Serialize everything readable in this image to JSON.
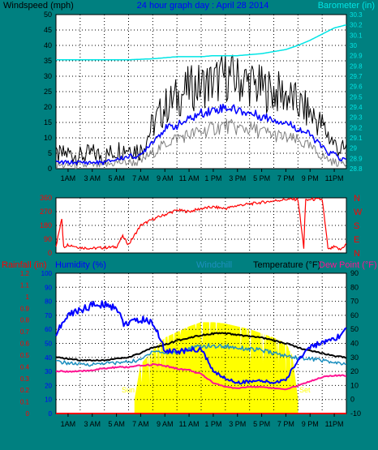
{
  "panels": {
    "wind": {
      "title": "24 hour graph day : April 28 2014",
      "left_label": "Windspeed (mph)",
      "right_label": "Barometer (in)",
      "left_ticks": [
        "0",
        "5",
        "10",
        "15",
        "20",
        "25",
        "30",
        "35",
        "40",
        "45",
        "50"
      ],
      "right_ticks": [
        "28.8",
        "28.9",
        "29",
        "29.1",
        "29.2",
        "29.3",
        "29.4",
        "29.5",
        "29.6",
        "29.7",
        "29.8",
        "29.9",
        "30",
        "30.1",
        "30.2",
        "30.3"
      ]
    },
    "direction": {
      "left_ticks": [
        "0",
        "90",
        "180",
        "270",
        "360"
      ],
      "right_ticks": [
        "N",
        "E",
        "S",
        "W",
        "N"
      ]
    },
    "temp": {
      "rain_label": "Rainfall (in)",
      "humidity_label": "Humidity (%)",
      "windchill_label": "Windchill",
      "temperature_label": "Temperature (°F)",
      "dewpoint_label": "Dew Point (°F)",
      "rain_ticks": [
        "0",
        "0.1",
        "0.2",
        "0.3",
        "0.4",
        "0.5",
        "0.6",
        "0.7",
        "0.8",
        "0.9",
        "1",
        "1.1",
        "1.2"
      ],
      "humidity_ticks": [
        "0",
        "10",
        "20",
        "30",
        "40",
        "50",
        "60",
        "70",
        "80",
        "90",
        "100"
      ],
      "temp_ticks": [
        "-10",
        "0",
        "10",
        "20",
        "30",
        "40",
        "50",
        "60",
        "70",
        "80",
        "90"
      ],
      "sun_label": "Sun",
      "set_label": "Set"
    },
    "x_ticks": [
      "1AM",
      "3 AM",
      "5 AM",
      "7 AM",
      "9 AM",
      "11 AM",
      "1 PM",
      "3 PM",
      "5 PM",
      "7 PM",
      "9 PM",
      "11PM"
    ]
  },
  "colors": {
    "background": "#008080",
    "plot_bg": "#FFFFFF",
    "gust": "#000000",
    "wind_avg": "#0000FF",
    "wind_low": "#808080",
    "barometer": "#00E5E5",
    "direction": "#FF0000",
    "humidity": "#0000FF",
    "windchill": "#1E90C0",
    "temperature": "#000000",
    "dewpoint": "#FF1493",
    "rain": "#FF0000",
    "solar": "#FFFF00",
    "title": "#0000FF"
  },
  "chart_data": [
    {
      "type": "line",
      "x_unit": "hour of day",
      "xlim": [
        0,
        24
      ],
      "ylim": [
        0,
        50
      ],
      "y2lim": [
        28.8,
        30.3
      ],
      "series": [
        {
          "axis": "left",
          "x": [
            0,
            1,
            2,
            3,
            4,
            5,
            6,
            7,
            7.5,
            8,
            9,
            10,
            11,
            12,
            13,
            14,
            15,
            16,
            17,
            18,
            19,
            20,
            21,
            22,
            22.5,
            23,
            23.5,
            24
          ],
          "values": [
            4,
            5,
            4,
            5,
            4,
            6,
            7,
            6,
            10,
            14,
            20,
            23,
            26,
            27,
            28,
            30,
            29,
            28,
            26,
            25,
            24,
            21,
            18,
            14,
            11,
            8,
            6,
            6
          ]
        },
        {
          "axis": "left",
          "x": [
            0,
            1,
            2,
            3,
            4,
            5,
            6,
            7,
            7.5,
            8,
            9,
            10,
            11,
            12,
            13,
            14,
            15,
            16,
            17,
            18,
            19,
            20,
            21,
            22,
            22.5,
            23,
            23.5,
            24
          ],
          "values": [
            2,
            2,
            2,
            2,
            2,
            3,
            4,
            4,
            7,
            9,
            13,
            14,
            16,
            18,
            19,
            20,
            19,
            18,
            17,
            16,
            15,
            13,
            11,
            7,
            5,
            5,
            3,
            3
          ]
        },
        {
          "axis": "left",
          "x": [
            0,
            1,
            2,
            3,
            4,
            5,
            6,
            7,
            7.5,
            8,
            9,
            10,
            11,
            12,
            13,
            14,
            15,
            16,
            17,
            18,
            19,
            20,
            21,
            22,
            22.5,
            23,
            23.5,
            24
          ],
          "values": [
            1,
            1,
            1,
            1,
            1,
            2,
            2,
            2,
            4,
            5,
            8,
            10,
            11,
            12,
            13,
            14,
            13,
            13,
            12,
            11,
            10,
            9,
            7,
            4,
            3,
            2,
            2,
            2
          ]
        },
        {
          "axis": "right",
          "name": "Barometer (in)",
          "x": [
            0,
            2,
            4,
            6,
            8,
            10,
            12,
            13,
            15,
            17,
            19,
            20,
            21,
            22,
            23,
            24
          ],
          "values": [
            29.86,
            29.86,
            29.86,
            29.86,
            29.87,
            29.89,
            29.89,
            29.9,
            29.9,
            29.92,
            29.96,
            30.0,
            30.05,
            30.11,
            30.17,
            30.2
          ]
        }
      ]
    },
    {
      "type": "line",
      "x_unit": "hour of day",
      "xlim": [
        0,
        24
      ],
      "ylim": [
        0,
        360
      ],
      "y_ticks_right": [
        "N",
        "E",
        "S",
        "W",
        "N"
      ],
      "series": [
        {
          "x": [
            0,
            0.5,
            0.6,
            0.7,
            1,
            2,
            3,
            4,
            5,
            5.5,
            6,
            7,
            8,
            9,
            10,
            11,
            12,
            13,
            14,
            15,
            16,
            17,
            18,
            19,
            20,
            20.5,
            20.6,
            20.7,
            21,
            22,
            22.5,
            23,
            23.5,
            24
          ],
          "values": [
            45,
            230,
            50,
            40,
            55,
            35,
            30,
            35,
            40,
            110,
            55,
            180,
            220,
            250,
            280,
            270,
            290,
            300,
            290,
            310,
            320,
            330,
            340,
            350,
            350,
            20,
            350,
            340,
            350,
            350,
            20,
            40,
            20,
            60
          ]
        }
      ]
    },
    {
      "type": "line",
      "x_unit": "hour of day",
      "xlim": [
        0,
        24
      ],
      "ylim": [
        -10,
        90
      ],
      "y2lim": [
        0,
        100
      ],
      "y3lim": [
        0,
        1.2
      ],
      "series": [
        {
          "name": "Humidity (%)",
          "axis": "humidity",
          "x": [
            0,
            1,
            2,
            3,
            4,
            5,
            5.5,
            6,
            7,
            8,
            9,
            10,
            11,
            12,
            13,
            14,
            15,
            16,
            17,
            18,
            19,
            20,
            21,
            22,
            23,
            24
          ],
          "values": [
            57,
            70,
            74,
            77,
            78,
            76,
            65,
            64,
            67,
            65,
            45,
            44,
            45,
            46,
            30,
            25,
            22,
            23,
            23,
            22,
            24,
            38,
            48,
            50,
            52,
            60
          ]
        },
        {
          "name": "Windchill",
          "axis": "temperature",
          "x": [
            0,
            1,
            2,
            3,
            4,
            5,
            6,
            7,
            8,
            9,
            10,
            11,
            12,
            13,
            14,
            15,
            16,
            17,
            18,
            19,
            20,
            21,
            22,
            23,
            24
          ],
          "values": [
            27,
            26,
            25,
            25,
            26,
            26,
            27,
            28,
            35,
            33,
            34,
            36,
            38,
            38,
            38,
            37,
            36,
            35,
            33,
            31,
            30,
            29,
            28,
            26,
            25
          ]
        },
        {
          "name": "Temperature (°F)",
          "axis": "temperature",
          "x": [
            0,
            1,
            2,
            3,
            4,
            5,
            6,
            7,
            8,
            9,
            10,
            11,
            12,
            13,
            14,
            15,
            16,
            17,
            18,
            19,
            20,
            21,
            22,
            23,
            24
          ],
          "values": [
            30,
            29,
            28,
            28,
            28,
            29,
            30,
            33,
            37,
            39,
            42,
            44,
            46,
            47,
            47,
            46,
            45,
            44,
            42,
            40,
            37,
            35,
            33,
            31,
            30
          ]
        },
        {
          "name": "Dew Point (°F)",
          "axis": "temperature",
          "x": [
            0,
            1,
            2,
            3,
            4,
            5,
            6,
            7,
            8,
            9,
            10,
            11,
            12,
            13,
            14,
            15,
            16,
            17,
            18,
            19,
            20,
            21,
            22,
            23,
            24
          ],
          "values": [
            20,
            20,
            20,
            21,
            22,
            23,
            23,
            24,
            25,
            24,
            22,
            21,
            18,
            12,
            9,
            8,
            9,
            9,
            8,
            7,
            10,
            13,
            16,
            17,
            17
          ]
        },
        {
          "name": "Rainfall (in)",
          "axis": "rain",
          "x": [
            0,
            24
          ],
          "values": [
            0,
            0
          ]
        }
      ],
      "solar": {
        "sunrise_hour": 6.5,
        "sunset_hour": 20.0,
        "x": [
          6.5,
          7,
          8,
          9,
          10,
          11,
          12,
          13,
          14,
          15,
          16,
          17,
          18,
          19,
          19.5,
          20
        ],
        "values": [
          0,
          25,
          35,
          44,
          48,
          52,
          55,
          55,
          54,
          52,
          50,
          47,
          44,
          40,
          32,
          0
        ]
      }
    }
  ]
}
